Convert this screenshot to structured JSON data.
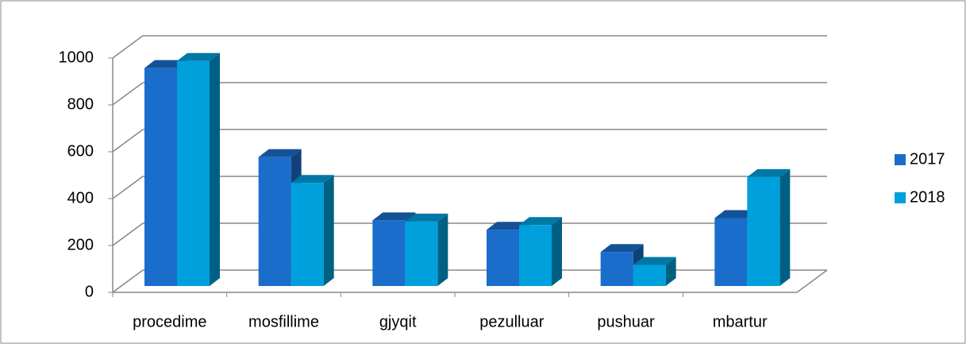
{
  "chart_data": {
    "type": "bar3d",
    "categories": [
      "procedime",
      "mosfillime",
      "gjyqit",
      "pezulluar",
      "pushuar",
      "mbartur"
    ],
    "series": [
      {
        "name": "2017",
        "color": "#1a6dcb",
        "values": [
          930,
          550,
          280,
          240,
          145,
          290
        ]
      },
      {
        "name": "2018",
        "color": "#00a0dc",
        "values": [
          960,
          440,
          275,
          260,
          90,
          465
        ]
      }
    ],
    "ylim": [
      0,
      1000
    ],
    "yticks": [
      0,
      200,
      400,
      600,
      800,
      1000
    ],
    "grid": true,
    "legend": "right"
  }
}
